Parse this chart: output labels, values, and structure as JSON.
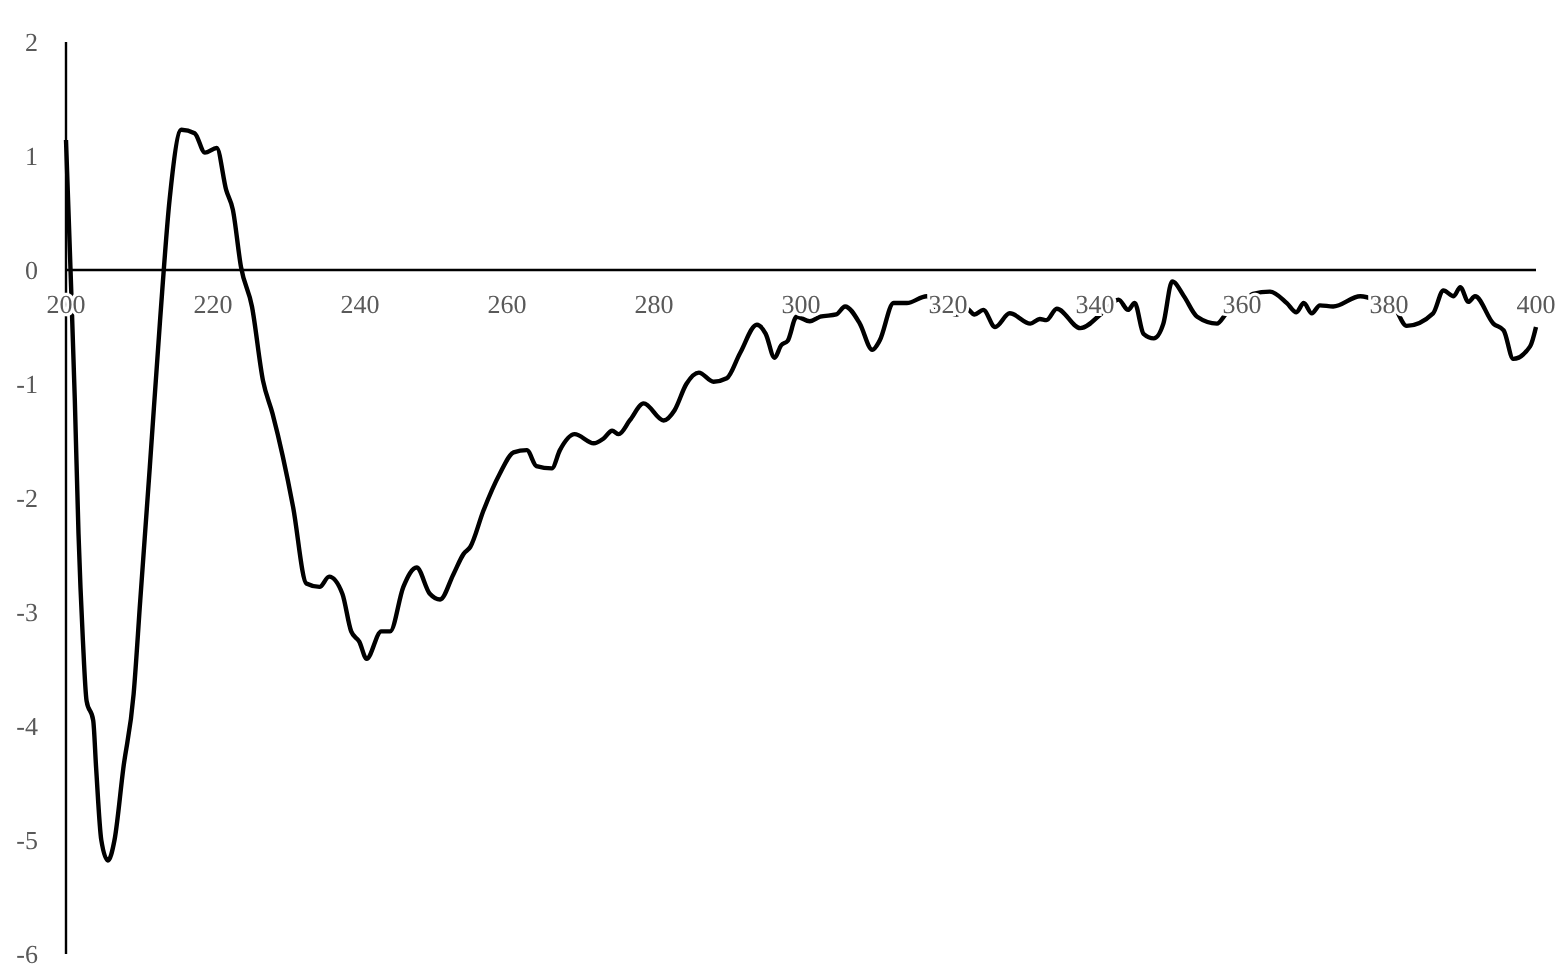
{
  "chart_data": {
    "type": "line",
    "xlim": [
      200,
      400
    ],
    "ylim": [
      -6,
      2
    ],
    "xticks": [
      200,
      220,
      240,
      260,
      280,
      300,
      320,
      340,
      360,
      380,
      400
    ],
    "yticks": [
      -6,
      -5,
      -4,
      -3,
      -2,
      -1,
      0,
      1,
      2
    ],
    "grid": false,
    "marker": "none",
    "line_style": "solid",
    "series": [
      {
        "color": "#000000",
        "x": [
          200,
          200.6,
          201.2,
          201.7,
          202.3,
          202.8,
          203.7,
          204.1,
          204.8,
          205.7,
          206.6,
          207.8,
          209.2,
          210.1,
          211.4,
          212.8,
          214.1,
          215.7,
          217.5,
          218.9,
          220.5,
          221.8,
          222.7,
          223.8,
          225.3,
          226.8,
          228.1,
          230.9,
          232.7,
          234.5,
          235.8,
          237.6,
          238.8,
          239.9,
          240.9,
          242.9,
          244.1,
          245.9,
          247.7,
          249.5,
          250.9,
          252.7,
          254.1,
          255,
          256.8,
          259,
          260.9,
          262.7,
          264,
          266.1,
          267.2,
          269.2,
          271.8,
          273.1,
          274.3,
          275.2,
          276.7,
          278.6,
          281.3,
          282.8,
          284.4,
          286.1,
          288.1,
          289.9,
          291.7,
          294,
          295.2,
          296.4,
          297.3,
          298.2,
          299.4,
          301.2,
          302.6,
          304.8,
          306,
          308,
          309.7,
          310.7,
          312.6,
          314.4,
          317.1,
          318.7,
          319.8,
          321.2,
          322.4,
          323.6,
          324.8,
          326.4,
          328.4,
          331.2,
          332.5,
          333.4,
          334.8,
          338,
          341.1,
          343.2,
          344.5,
          345.4,
          346.6,
          348,
          349.3,
          350.5,
          352.1,
          353.9,
          356.6,
          357.9,
          359.8,
          361.5,
          363.8,
          366.1,
          367.4,
          368.4,
          369.5,
          370.6,
          372.4,
          376.1,
          379.2,
          380.6,
          382.4,
          386,
          387.4,
          388.8,
          389.7,
          390.8,
          391.7,
          394.2,
          395.6,
          396.9,
          399.2,
          400
        ],
        "values": [
          1.14,
          0.03,
          -1.14,
          -2.31,
          -3.25,
          -3.78,
          -3.95,
          -4.37,
          -5.0,
          -5.18,
          -5.0,
          -4.37,
          -3.72,
          -2.9,
          -1.73,
          -0.44,
          0.62,
          1.23,
          1.2,
          1.03,
          1.07,
          0.7,
          0.53,
          0.03,
          -0.32,
          -0.97,
          -1.26,
          -2.08,
          -2.75,
          -2.78,
          -2.69,
          -2.84,
          -3.17,
          -3.26,
          -3.41,
          -3.17,
          -3.17,
          -2.78,
          -2.61,
          -2.84,
          -2.89,
          -2.67,
          -2.49,
          -2.43,
          -2.11,
          -1.79,
          -1.6,
          -1.58,
          -1.72,
          -1.74,
          -1.58,
          -1.44,
          -1.52,
          -1.48,
          -1.41,
          -1.44,
          -1.32,
          -1.17,
          -1.32,
          -1.23,
          -1.0,
          -0.9,
          -0.98,
          -0.95,
          -0.73,
          -0.48,
          -0.56,
          -0.77,
          -0.66,
          -0.62,
          -0.41,
          -0.45,
          -0.41,
          -0.39,
          -0.32,
          -0.47,
          -0.7,
          -0.62,
          -0.29,
          -0.29,
          -0.23,
          -0.35,
          -0.37,
          -0.39,
          -0.33,
          -0.39,
          -0.35,
          -0.5,
          -0.38,
          -0.47,
          -0.43,
          -0.44,
          -0.34,
          -0.51,
          -0.37,
          -0.26,
          -0.35,
          -0.29,
          -0.56,
          -0.6,
          -0.47,
          -0.1,
          -0.23,
          -0.41,
          -0.47,
          -0.38,
          -0.32,
          -0.21,
          -0.19,
          -0.29,
          -0.37,
          -0.29,
          -0.38,
          -0.31,
          -0.32,
          -0.23,
          -0.29,
          -0.32,
          -0.49,
          -0.38,
          -0.18,
          -0.23,
          -0.15,
          -0.28,
          -0.23,
          -0.47,
          -0.53,
          -0.78,
          -0.67,
          -0.5
        ]
      }
    ]
  }
}
